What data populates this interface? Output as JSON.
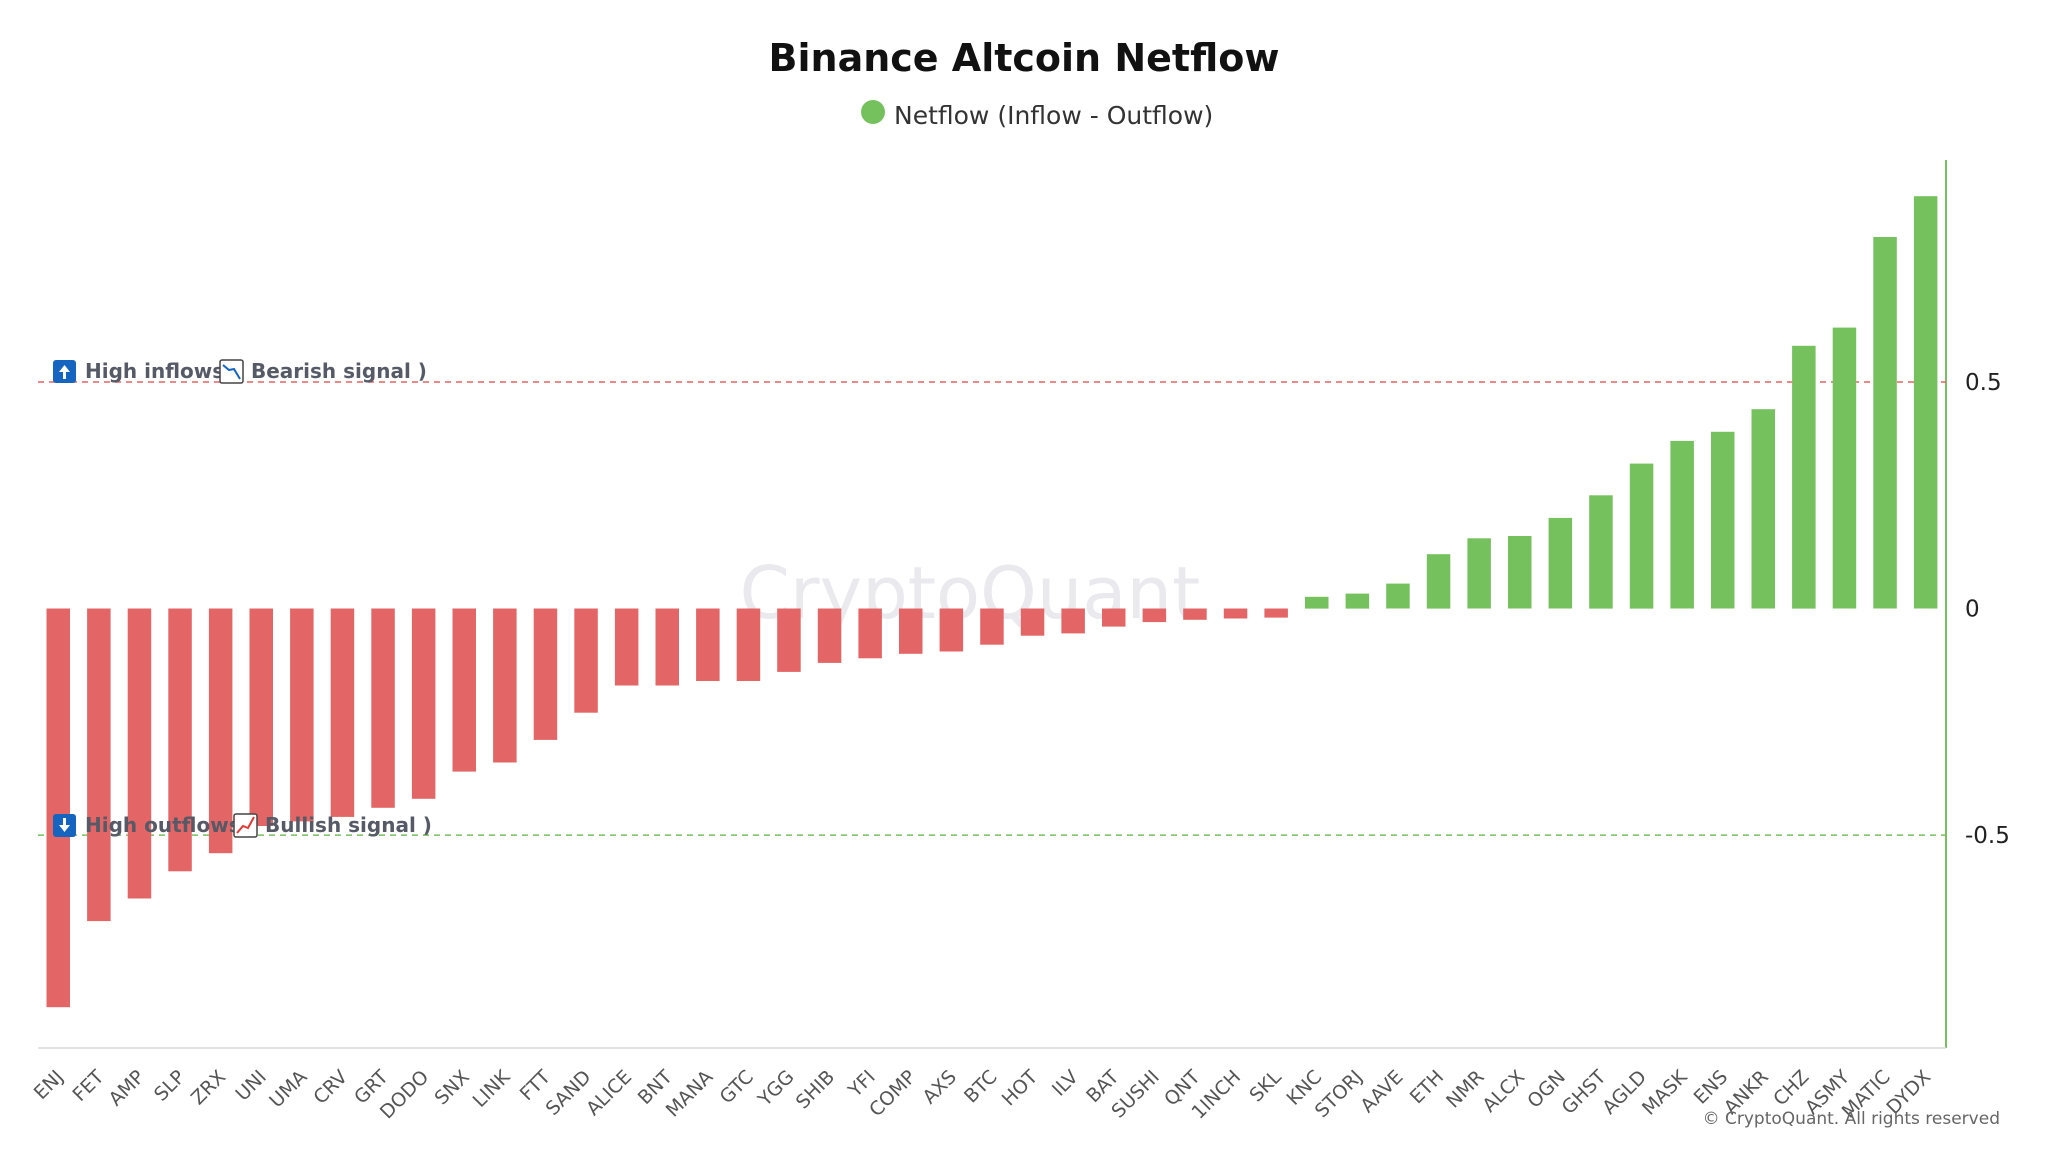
{
  "colors": {
    "positive": "#75c15e",
    "negative": "#e46565",
    "axis": "#75c15e",
    "inflow_line": "#e46565",
    "outflow_line": "#75c15e",
    "icon_blue": "#1565c0"
  },
  "watermark": "CryptoQuant",
  "copyright": "© CryptoQuant. All rights reserved",
  "annotations": {
    "high_inflows": {
      "prefix": "High inflows",
      "open": "(",
      "signal": "Bearish signal",
      "close": ")",
      "arrow_icon": "up-arrow-icon",
      "chart_icon": "chart-decreasing-icon"
    },
    "high_outflows": {
      "prefix": "High outflows",
      "open": "(",
      "signal": "Bullish signal",
      "close": ")",
      "arrow_icon": "down-arrow-icon",
      "chart_icon": "chart-increasing-icon"
    }
  },
  "chart_data": {
    "type": "bar",
    "title": "Binance Altcoin Netflow",
    "legend": {
      "label": "Netflow (Inflow - Outflow)",
      "position": "top-center"
    },
    "xlabel": "",
    "ylabel": "",
    "ylim": [
      -0.97,
      0.99
    ],
    "y_axis_side": "right",
    "yticks": [
      0.5,
      0,
      -0.5
    ],
    "ytick_labels": [
      "0.5",
      "0",
      "-0.5"
    ],
    "reference_lines": [
      {
        "value": 0.5,
        "style": "dashed",
        "color": "#e46565"
      },
      {
        "value": -0.5,
        "style": "dashed",
        "color": "#75c15e"
      }
    ],
    "grid": false,
    "categories": [
      "ENJ",
      "FET",
      "AMP",
      "SLP",
      "ZRX",
      "UNI",
      "UMA",
      "CRV",
      "GRT",
      "DODO",
      "SNX",
      "LINK",
      "FTT",
      "SAND",
      "ALICE",
      "BNT",
      "MANA",
      "GTC",
      "YGG",
      "SHIB",
      "YFI",
      "COMP",
      "AXS",
      "BTC",
      "HOT",
      "ILV",
      "BAT",
      "SUSHI",
      "QNT",
      "1INCH",
      "SKL",
      "KNC",
      "STORJ",
      "AAVE",
      "ETH",
      "NMR",
      "ALCX",
      "OGN",
      "GHST",
      "AGLD",
      "MASK",
      "ENS",
      "ANKR",
      "CHZ",
      "ASMY",
      "MATIC",
      "DYDX"
    ],
    "values": [
      -0.88,
      -0.69,
      -0.64,
      -0.58,
      -0.54,
      -0.48,
      -0.47,
      -0.46,
      -0.44,
      -0.42,
      -0.36,
      -0.34,
      -0.29,
      -0.23,
      -0.17,
      -0.17,
      -0.16,
      -0.16,
      -0.14,
      -0.12,
      -0.11,
      -0.1,
      -0.095,
      -0.08,
      -0.06,
      -0.055,
      -0.04,
      -0.03,
      -0.025,
      -0.022,
      -0.02,
      0.026,
      0.033,
      0.055,
      0.12,
      0.155,
      0.16,
      0.2,
      0.25,
      0.32,
      0.37,
      0.39,
      0.44,
      0.58,
      0.62,
      0.82,
      0.91
    ]
  }
}
